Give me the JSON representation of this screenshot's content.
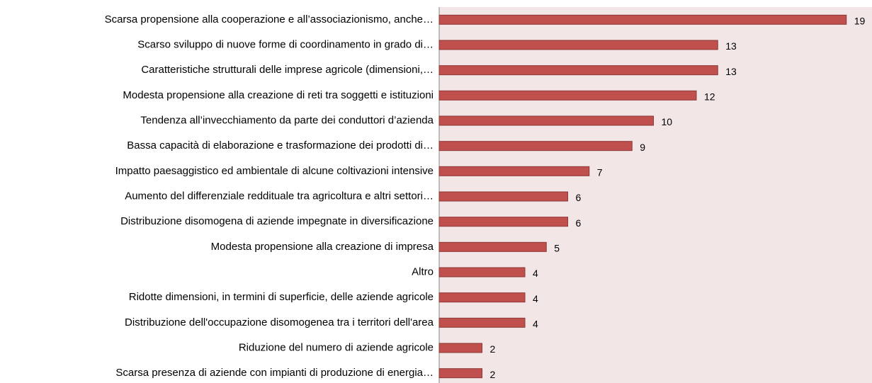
{
  "chart_data": {
    "type": "bar",
    "orientation": "horizontal",
    "categories": [
      "Scarsa propensione alla cooperazione e all’associazionismo, anche…",
      "Scarso sviluppo di nuove forme di coordinamento in grado di…",
      "Caratteristiche strutturali delle imprese agricole (dimensioni,…",
      "Modesta propensione alla creazione di reti tra soggetti e istituzioni",
      "Tendenza all’invecchiamento da parte dei conduttori d’azienda",
      "Bassa capacità di elaborazione e trasformazione dei prodotti di…",
      "Impatto paesaggistico ed ambientale di alcune coltivazioni intensive",
      "Aumento del differenziale reddituale tra agricoltura e altri settori…",
      "Distribuzione disomogena di aziende impegnate in diversificazione",
      "Modesta propensione alla creazione di impresa",
      "Altro",
      "Ridotte dimensioni, in termini di superficie, delle aziende agricole",
      "Distribuzione dell'occupazione disomogenea tra i territori dell'area",
      "Riduzione del numero di aziende agricole",
      "Scarsa presenza di aziende con impianti di produzione di energia…"
    ],
    "values": [
      19,
      13,
      13,
      12,
      10,
      9,
      7,
      6,
      6,
      5,
      4,
      4,
      4,
      2,
      2
    ],
    "color": "#c0504d",
    "xlim": [
      0,
      20
    ]
  }
}
